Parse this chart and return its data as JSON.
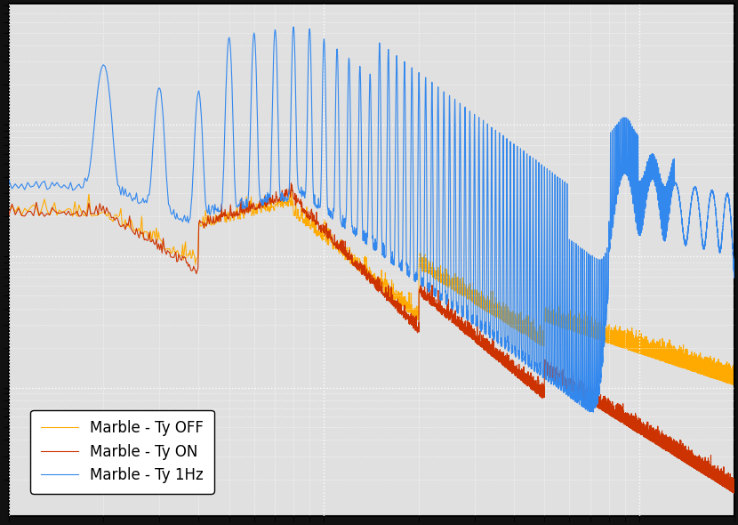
{
  "line1_color": "#3388ee",
  "line2_color": "#cc3300",
  "line3_color": "#ffaa00",
  "line1_label": "Marble - Ty 1Hz",
  "line2_label": "Marble - Ty ON",
  "line3_label": "Marble - Ty OFF",
  "fig_bg_color": "#111111",
  "ax_bg_color": "#e0e0e0",
  "grid_color": "#ffffff",
  "grid_style": "dotted",
  "figsize": [
    8.3,
    5.9
  ],
  "dpi": 100,
  "xlim": [
    1,
    200
  ],
  "lw": 0.8,
  "legend_fontsize": 12,
  "tick_labelsize": 0
}
